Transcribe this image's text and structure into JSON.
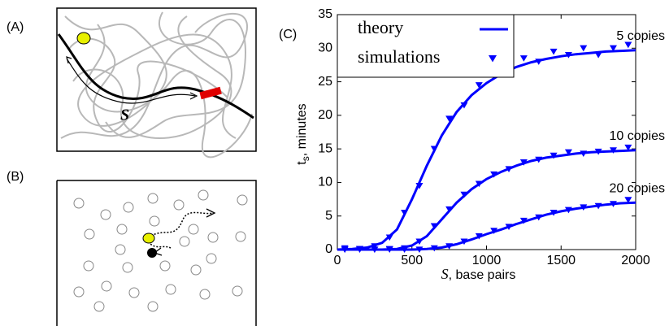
{
  "panel_labels": [
    "(A)",
    "(B)",
    "(C)"
  ],
  "diagram_a": {
    "label": "S"
  },
  "chart_data": {
    "type": "line",
    "xlabel": {
      "var": "S",
      "rest": ", base pairs"
    },
    "ylabel": {
      "main": "t",
      "sub": "s",
      "rest": ", minutes"
    },
    "legend": [
      "theory",
      "simulations"
    ],
    "color": "#0000ff",
    "x": [
      0,
      100,
      200,
      300,
      400,
      500,
      600,
      700,
      800,
      900,
      1000,
      1100,
      1200,
      1300,
      1400,
      1500,
      1600,
      1700,
      1800,
      1900,
      2000
    ],
    "sim_x": [
      50,
      150,
      250,
      350,
      450,
      550,
      650,
      750,
      850,
      950,
      1050,
      1150,
      1250,
      1350,
      1450,
      1550,
      1650,
      1750,
      1850,
      1950
    ],
    "series": [
      {
        "name": "5 copies",
        "theory": [
          0,
          0.1,
          0.3,
          1,
          3,
          7.5,
          12.5,
          17,
          20.5,
          23,
          24.8,
          26.2,
          27.2,
          27.9,
          28.4,
          28.8,
          29.1,
          29.3,
          29.5,
          29.6,
          29.7
        ],
        "simulations": [
          0.2,
          0.1,
          0.5,
          1.8,
          5.5,
          9.5,
          15,
          19.5,
          21.5,
          24.5,
          26.5,
          26.5,
          28.5,
          28,
          29.5,
          29,
          30,
          29,
          30,
          30.5
        ]
      },
      {
        "name": "10 copies",
        "theory": [
          0,
          0,
          0,
          0,
          0.1,
          0.6,
          2,
          4.5,
          7,
          9,
          10.5,
          11.6,
          12.5,
          13.2,
          13.7,
          14,
          14.3,
          14.5,
          14.6,
          14.7,
          14.8
        ],
        "simulations": [
          0,
          0.1,
          0,
          0,
          0.2,
          1.2,
          3.5,
          6,
          8.2,
          9.8,
          11.2,
          12,
          13,
          13.4,
          14,
          14.5,
          14.3,
          14.6,
          14.8,
          15.2
        ]
      },
      {
        "name": "20 copies",
        "theory": [
          0,
          0,
          0,
          0,
          0,
          0,
          0.1,
          0.3,
          0.8,
          1.5,
          2.3,
          3,
          3.8,
          4.5,
          5.2,
          5.7,
          6.1,
          6.4,
          6.7,
          6.9,
          7
        ],
        "simulations": [
          0,
          0,
          0,
          0.1,
          0,
          0,
          0.2,
          0.5,
          1.2,
          2,
          2.8,
          3.4,
          4.3,
          4.8,
          5.5,
          5.9,
          6.3,
          6.5,
          6.8,
          7.4
        ]
      }
    ],
    "xlim": [
      0,
      2000
    ],
    "ylim": [
      0,
      35
    ],
    "xticks": [
      0,
      500,
      1000,
      1500,
      2000
    ],
    "yticks": [
      0,
      5,
      10,
      15,
      20,
      25,
      30,
      35
    ]
  }
}
